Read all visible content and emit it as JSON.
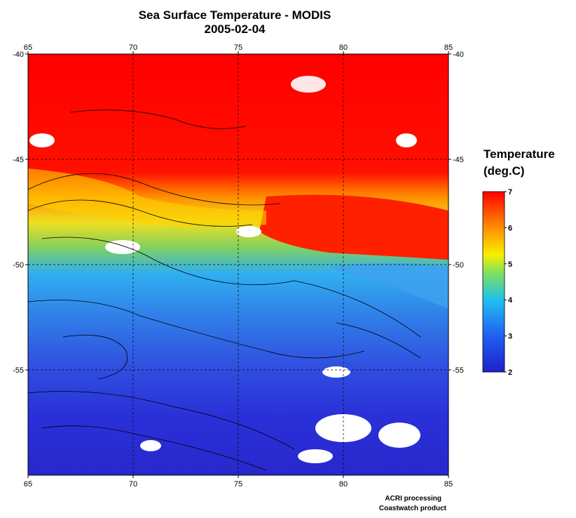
{
  "title": "Sea Surface Temperature - MODIS",
  "subtitle": "2005-02-04",
  "map": {
    "xlim": [
      65,
      85
    ],
    "ylim": [
      -60,
      -40
    ],
    "xticks": [
      65,
      70,
      75,
      80,
      85
    ],
    "yticks": [
      -40,
      -45,
      -50,
      -55
    ],
    "grid": true
  },
  "colorbar": {
    "title": "Temperature",
    "units": "(deg.C)",
    "lim": [
      2,
      7
    ],
    "ticks": [
      2,
      3,
      4,
      5,
      6,
      7
    ]
  },
  "credits": [
    "ACRI processing",
    "Coastwatch product"
  ]
}
